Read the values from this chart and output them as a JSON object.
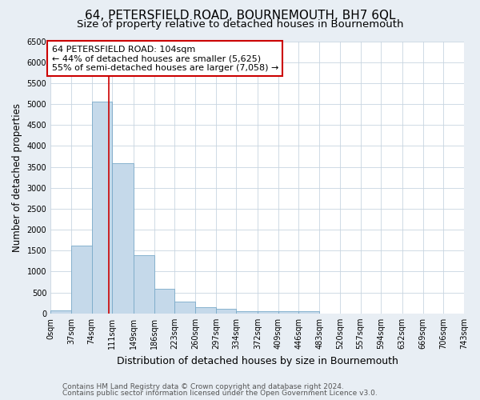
{
  "title": "64, PETERSFIELD ROAD, BOURNEMOUTH, BH7 6QL",
  "subtitle": "Size of property relative to detached houses in Bournemouth",
  "xlabel": "Distribution of detached houses by size in Bournemouth",
  "ylabel": "Number of detached properties",
  "footnote1": "Contains HM Land Registry data © Crown copyright and database right 2024.",
  "footnote2": "Contains public sector information licensed under the Open Government Licence v3.0.",
  "bin_edges": [
    0,
    37,
    74,
    111,
    149,
    186,
    223,
    260,
    297,
    334,
    372,
    409,
    446,
    483,
    520,
    557,
    594,
    632,
    669,
    706,
    743
  ],
  "bar_heights": [
    70,
    1620,
    5060,
    3580,
    1400,
    590,
    290,
    155,
    110,
    60,
    45,
    45,
    45,
    0,
    0,
    0,
    0,
    0,
    0,
    0
  ],
  "bar_color": "#c5d9ea",
  "bar_edge_color": "#7aaac8",
  "property_size": 104,
  "vline_color": "#cc0000",
  "annotation_text": "64 PETERSFIELD ROAD: 104sqm\n← 44% of detached houses are smaller (5,625)\n55% of semi-detached houses are larger (7,058) →",
  "annotation_box_color": "#ffffff",
  "annotation_box_edge": "#cc0000",
  "ylim": [
    0,
    6500
  ],
  "yticks": [
    0,
    500,
    1000,
    1500,
    2000,
    2500,
    3000,
    3500,
    4000,
    4500,
    5000,
    5500,
    6000,
    6500
  ],
  "plot_bg_color": "#ffffff",
  "fig_bg_color": "#e8eef4",
  "grid_color": "#c8d4e0",
  "title_fontsize": 11,
  "subtitle_fontsize": 9.5,
  "ylabel_fontsize": 8.5,
  "xlabel_fontsize": 9,
  "tick_fontsize": 7,
  "annotation_fontsize": 8,
  "footnote_fontsize": 6.5
}
